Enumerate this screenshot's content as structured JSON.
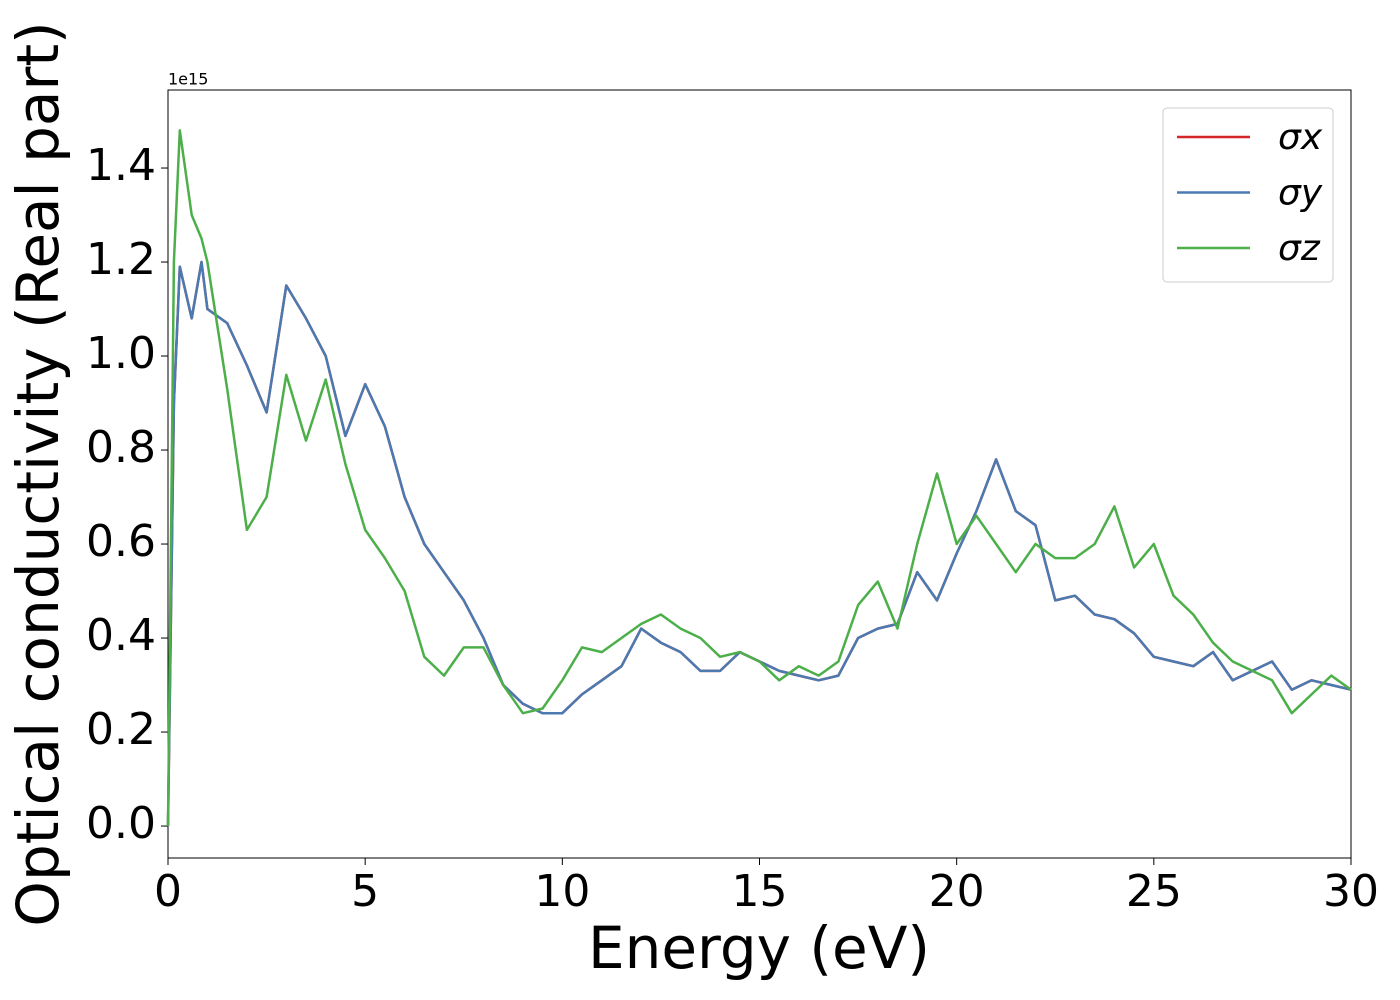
{
  "chart_data": {
    "type": "line",
    "xlabel": "Energy (eV)",
    "ylabel": "Optical conductivity (Real part)",
    "y_offset_text": "1e15",
    "x": [
      0,
      0.15,
      0.3,
      0.6,
      0.85,
      1.0,
      1.5,
      2.0,
      2.5,
      3.0,
      3.5,
      4.0,
      4.5,
      5.0,
      5.5,
      6.0,
      6.5,
      7.0,
      7.5,
      8.0,
      8.5,
      9.0,
      9.5,
      10.0,
      10.5,
      11.0,
      11.5,
      12.0,
      12.5,
      13.0,
      13.5,
      14.0,
      14.5,
      15.0,
      15.5,
      16.0,
      16.5,
      17.0,
      17.5,
      18.0,
      18.5,
      19.0,
      19.5,
      20.0,
      20.5,
      21.0,
      21.5,
      22.0,
      22.5,
      23.0,
      23.5,
      24.0,
      24.5,
      25.0,
      25.5,
      26.0,
      26.5,
      27.0,
      27.5,
      28.0,
      28.5,
      29.0,
      29.5,
      30.0
    ],
    "series": [
      {
        "name": "σx",
        "color": "#d62728",
        "values": [
          0,
          0.9,
          1.19,
          1.08,
          1.2,
          1.1,
          1.07,
          0.98,
          0.88,
          1.15,
          1.08,
          1.0,
          0.83,
          0.94,
          0.85,
          0.7,
          0.6,
          0.54,
          0.48,
          0.4,
          0.3,
          0.26,
          0.24,
          0.24,
          0.28,
          0.31,
          0.34,
          0.42,
          0.39,
          0.37,
          0.33,
          0.33,
          0.37,
          0.35,
          0.33,
          0.32,
          0.31,
          0.32,
          0.4,
          0.42,
          0.43,
          0.54,
          0.48,
          0.58,
          0.67,
          0.78,
          0.67,
          0.64,
          0.48,
          0.49,
          0.45,
          0.44,
          0.41,
          0.36,
          0.35,
          0.34,
          0.37,
          0.31,
          0.33,
          0.35,
          0.29,
          0.31,
          0.3,
          0.29
        ]
      },
      {
        "name": "σy",
        "color": "#4a7ab0",
        "values": [
          0,
          0.9,
          1.19,
          1.08,
          1.2,
          1.1,
          1.07,
          0.98,
          0.88,
          1.15,
          1.08,
          1.0,
          0.83,
          0.94,
          0.85,
          0.7,
          0.6,
          0.54,
          0.48,
          0.4,
          0.3,
          0.26,
          0.24,
          0.24,
          0.28,
          0.31,
          0.34,
          0.42,
          0.39,
          0.37,
          0.33,
          0.33,
          0.37,
          0.35,
          0.33,
          0.32,
          0.31,
          0.32,
          0.4,
          0.42,
          0.43,
          0.54,
          0.48,
          0.58,
          0.67,
          0.78,
          0.67,
          0.64,
          0.48,
          0.49,
          0.45,
          0.44,
          0.41,
          0.36,
          0.35,
          0.34,
          0.37,
          0.31,
          0.33,
          0.35,
          0.29,
          0.31,
          0.3,
          0.29
        ]
      },
      {
        "name": "σz",
        "color": "#4daf4a",
        "values": [
          0,
          1.2,
          1.48,
          1.3,
          1.25,
          1.2,
          0.93,
          0.63,
          0.7,
          0.96,
          0.82,
          0.95,
          0.77,
          0.63,
          0.57,
          0.5,
          0.36,
          0.32,
          0.38,
          0.38,
          0.3,
          0.24,
          0.25,
          0.31,
          0.38,
          0.37,
          0.4,
          0.43,
          0.45,
          0.42,
          0.4,
          0.36,
          0.37,
          0.35,
          0.31,
          0.34,
          0.32,
          0.35,
          0.47,
          0.52,
          0.42,
          0.6,
          0.75,
          0.6,
          0.66,
          0.6,
          0.54,
          0.6,
          0.57,
          0.57,
          0.6,
          0.68,
          0.55,
          0.6,
          0.49,
          0.45,
          0.39,
          0.35,
          0.33,
          0.31,
          0.24,
          0.28,
          0.32,
          0.29
        ]
      }
    ],
    "xlim": [
      0,
      30
    ],
    "xticks": [
      0,
      5,
      10,
      15,
      20,
      25,
      30
    ],
    "ylim": [
      -0.068,
      1.566
    ],
    "yticks": [
      {
        "value": 0,
        "label": "0.0"
      },
      0.2,
      0.4,
      0.6,
      0.8,
      {
        "value": 1,
        "label": "1.0"
      },
      1.2,
      1.4
    ],
    "legend": "upper right",
    "grid": false
  }
}
